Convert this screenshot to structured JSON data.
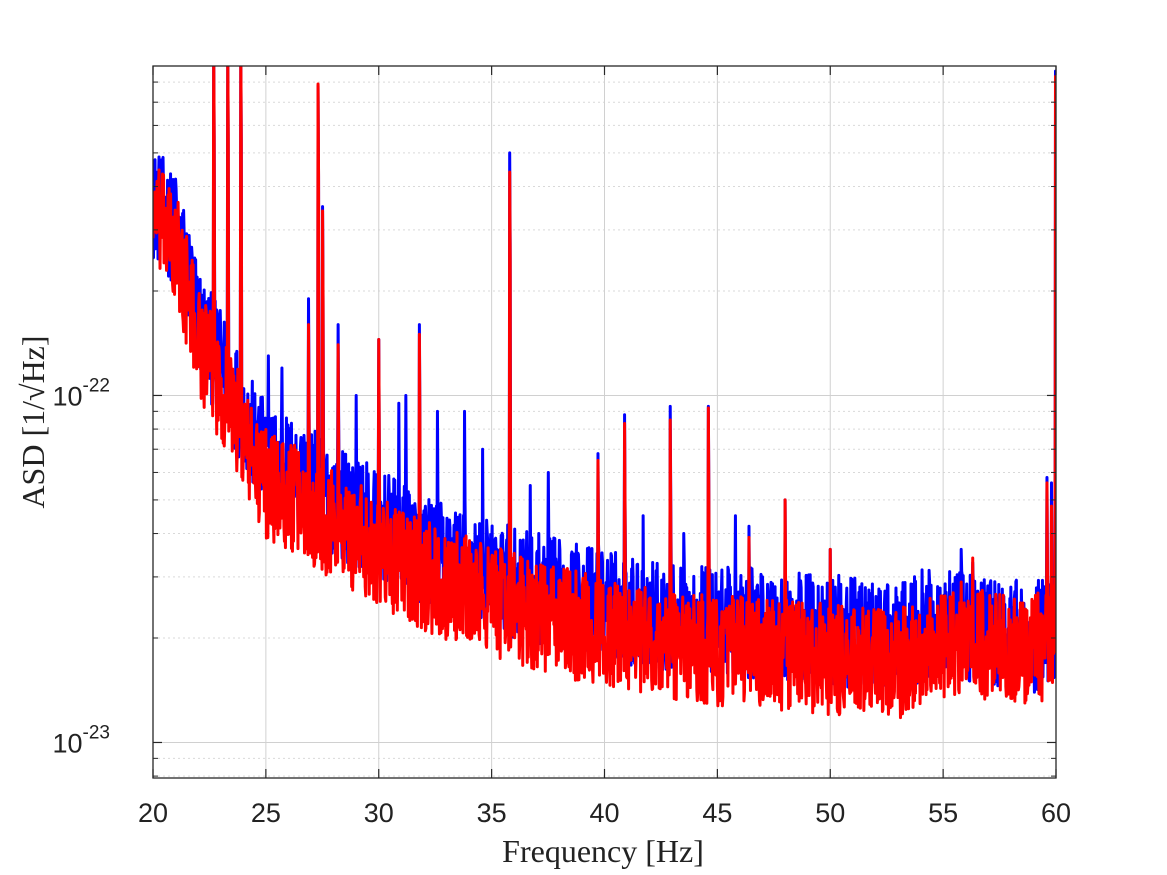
{
  "chart_data": {
    "type": "line",
    "xlabel": "Frequency [Hz]",
    "ylabel": "ASD [1/√Hz]",
    "xlim": [
      20,
      60
    ],
    "ylim": [
      7.9e-24,
      8.9e-22
    ],
    "y_scale": "log",
    "grid": true,
    "minor_grid": true,
    "x_ticks": [
      20,
      25,
      30,
      35,
      40,
      45,
      50,
      55,
      60
    ],
    "x_tick_labels": [
      "20",
      "25",
      "30",
      "35",
      "40",
      "45",
      "50",
      "55",
      "60"
    ],
    "y_ticks": [
      {
        "value": 1e-22,
        "base": "10",
        "exp": "-22"
      },
      {
        "value": 1e-23,
        "base": "10",
        "exp": "-23"
      }
    ],
    "series": [
      {
        "color": "#0000ff",
        "floor_points": [
          [
            20,
            3.2e-22
          ],
          [
            20.5,
            3e-22
          ],
          [
            21,
            2.6e-22
          ],
          [
            21.5,
            2.1e-22
          ],
          [
            22,
            1.5e-22
          ],
          [
            22.5,
            1.25e-22
          ],
          [
            23,
            1.1e-22
          ],
          [
            23.5,
            9.5e-23
          ],
          [
            24,
            8e-23
          ],
          [
            24.5,
            6.6e-23
          ],
          [
            25,
            6e-23
          ],
          [
            26,
            5.5e-23
          ],
          [
            27,
            5e-23
          ],
          [
            28,
            4.5e-23
          ],
          [
            30,
            3.8e-23
          ],
          [
            32,
            3.2e-23
          ],
          [
            35,
            2.7e-23
          ],
          [
            38,
            2.4e-23
          ],
          [
            40,
            2.25e-23
          ],
          [
            42,
            2.1e-23
          ],
          [
            45,
            2e-23
          ],
          [
            48,
            1.95e-23
          ],
          [
            50,
            1.9e-23
          ],
          [
            52,
            1.8e-23
          ],
          [
            53,
            1.75e-23
          ],
          [
            54,
            1.95e-23
          ],
          [
            55,
            1.95e-23
          ],
          [
            57,
            1.9e-23
          ],
          [
            59,
            1.8e-23
          ],
          [
            59.7,
            1.9e-23
          ],
          [
            60,
            2e-23
          ]
        ],
        "peaks": [
          [
            20.2,
            4.4e-22
          ],
          [
            21,
            4.2e-22
          ],
          [
            22.7,
            1e-21
          ],
          [
            23.3,
            1e-21
          ],
          [
            23.9,
            1e-21
          ],
          [
            25.1,
            1.3e-22
          ],
          [
            25.7,
            1.2e-22
          ],
          [
            26.9,
            1.9e-22
          ],
          [
            27.3,
            7.8e-22
          ],
          [
            27.5,
            3.5e-22
          ],
          [
            28.2,
            1.6e-22
          ],
          [
            29,
            1e-22
          ],
          [
            30,
            1.45e-22
          ],
          [
            30.9,
            9.5e-23
          ],
          [
            31.2,
            1e-22
          ],
          [
            31.8,
            1.6e-22
          ],
          [
            32.6,
            9e-23
          ],
          [
            33.8,
            9e-23
          ],
          [
            34.6,
            7e-23
          ],
          [
            35.8,
            5e-22
          ],
          [
            36.7,
            5.5e-23
          ],
          [
            37.5,
            6e-23
          ],
          [
            39.7,
            6.8e-23
          ],
          [
            40.3,
            3.5e-23
          ],
          [
            40.9,
            8.8e-23
          ],
          [
            41.7,
            4.5e-23
          ],
          [
            42.9,
            9.3e-23
          ],
          [
            43.5,
            4e-23
          ],
          [
            44.6,
            9.3e-23
          ],
          [
            45.8,
            4.5e-23
          ],
          [
            46.4,
            4.2e-23
          ],
          [
            47,
            3e-23
          ],
          [
            48,
            5e-23
          ],
          [
            50,
            3.6e-23
          ],
          [
            52.2,
            2.5e-23
          ],
          [
            52.7,
            2.3e-23
          ],
          [
            55.8,
            3.6e-23
          ],
          [
            56.3,
            3.3e-23
          ],
          [
            58.9,
            2.2e-23
          ],
          [
            59.6,
            5.8e-23
          ],
          [
            59.8,
            5.6e-23
          ],
          [
            59.97,
            8.6e-22
          ]
        ]
      },
      {
        "color": "#ff0000",
        "floor_points": [
          [
            20,
            2.9e-22
          ],
          [
            20.5,
            2.7e-22
          ],
          [
            21,
            2.3e-22
          ],
          [
            21.5,
            1.8e-22
          ],
          [
            22,
            1.3e-22
          ],
          [
            22.5,
            1.1e-22
          ],
          [
            23,
            9.5e-23
          ],
          [
            23.5,
            8.3e-23
          ],
          [
            24,
            6.8e-23
          ],
          [
            24.5,
            5.6e-23
          ],
          [
            25,
            5e-23
          ],
          [
            26,
            4.6e-23
          ],
          [
            27,
            4.2e-23
          ],
          [
            28,
            3.8e-23
          ],
          [
            30,
            3.2e-23
          ],
          [
            32,
            2.7e-23
          ],
          [
            35,
            2.3e-23
          ],
          [
            38,
            2e-23
          ],
          [
            40,
            1.85e-23
          ],
          [
            42,
            1.75e-23
          ],
          [
            45,
            1.65e-23
          ],
          [
            48,
            1.6e-23
          ],
          [
            50,
            1.55e-23
          ],
          [
            52,
            1.5e-23
          ],
          [
            53,
            1.5e-23
          ],
          [
            54,
            1.65e-23
          ],
          [
            55,
            1.7e-23
          ],
          [
            57,
            1.7e-23
          ],
          [
            59,
            1.65e-23
          ],
          [
            59.7,
            1.75e-23
          ],
          [
            60,
            1.9e-23
          ]
        ],
        "peaks": [
          [
            20.1,
            3.8e-22
          ],
          [
            21.1,
            3.6e-22
          ],
          [
            22.7,
            1e-21
          ],
          [
            23.3,
            1e-21
          ],
          [
            23.9,
            1e-21
          ],
          [
            26.9,
            1.6e-22
          ],
          [
            27.3,
            7.9e-22
          ],
          [
            27.5,
            3.4e-22
          ],
          [
            28.2,
            1.4e-22
          ],
          [
            30,
            1.45e-22
          ],
          [
            31.8,
            1.5e-22
          ],
          [
            35.8,
            4.4e-22
          ],
          [
            39.7,
            6.5e-23
          ],
          [
            40.9,
            8.3e-23
          ],
          [
            42.9,
            8.5e-23
          ],
          [
            44.6,
            9.2e-23
          ],
          [
            46.4,
            3.9e-23
          ],
          [
            48,
            5e-23
          ],
          [
            50,
            3.6e-23
          ],
          [
            52.7,
            2.2e-23
          ],
          [
            55.8,
            2.9e-23
          ],
          [
            56.3,
            3.4e-23
          ],
          [
            59.6,
            5.6e-23
          ],
          [
            59.8,
            4.8e-23
          ],
          [
            59.97,
            8.3e-22
          ]
        ]
      }
    ]
  }
}
